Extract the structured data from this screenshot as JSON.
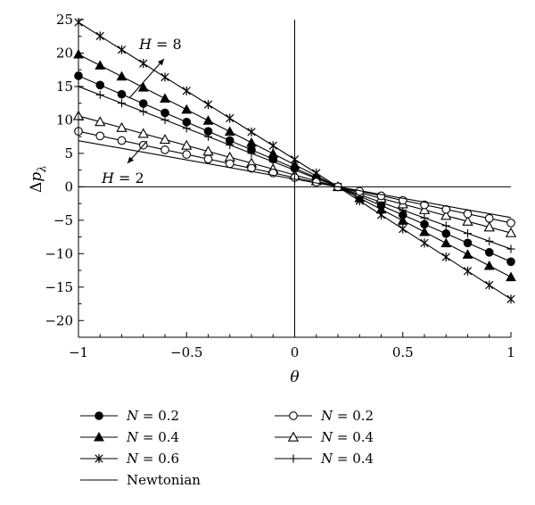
{
  "chart_data": {
    "type": "line",
    "xlabel": "θ",
    "ylabel": "Δp",
    "ylabel_sub": "λ",
    "xlim": [
      -1,
      1
    ],
    "ylim": [
      -22.5,
      25
    ],
    "x_ticks": [
      -1,
      -0.5,
      0,
      0.5,
      1
    ],
    "x_tick_labels": [
      "−1",
      "−0.5",
      "0",
      "0.5",
      "1"
    ],
    "y_ticks": [
      25,
      20,
      15,
      10,
      5,
      0,
      -5,
      -10,
      -15,
      -20
    ],
    "y_tick_labels": [
      "25",
      "20",
      "15",
      "10",
      "5",
      "0",
      "−5",
      "−10",
      "−15",
      "−20"
    ],
    "grid": false,
    "reference_lines": {
      "x": 0,
      "y": 0
    },
    "annotations": [
      {
        "text": "H = 8",
        "var": "H",
        "rest": " = 8"
      },
      {
        "text": "H = 2",
        "var": "H",
        "rest": " = 2"
      }
    ],
    "series": [
      {
        "name": "N = 0.6",
        "marker": "star",
        "group": "H = 8",
        "points": [
          [
            -1,
            24.6
          ],
          [
            0.2,
            0.0
          ],
          [
            1,
            -16.8
          ]
        ]
      },
      {
        "name": "N = 0.4",
        "marker": "triangle-filled",
        "group": "H = 8",
        "points": [
          [
            -1,
            19.8
          ],
          [
            0.2,
            0.0
          ],
          [
            1,
            -13.5
          ]
        ]
      },
      {
        "name": "N = 0.2",
        "marker": "circle-filled",
        "group": "H = 8",
        "points": [
          [
            -1,
            16.6
          ],
          [
            0.2,
            0.0
          ],
          [
            1,
            -11.2
          ]
        ]
      },
      {
        "name": "N = 0.4",
        "marker": "plus",
        "group": "H = 2",
        "points": [
          [
            -1,
            15.0
          ],
          [
            0.2,
            0.0
          ],
          [
            1,
            -9.3
          ]
        ]
      },
      {
        "name": "N = 0.4",
        "marker": "triangle-open",
        "group": "H = 2",
        "points": [
          [
            -1,
            10.6
          ],
          [
            0.2,
            0.0
          ],
          [
            1,
            -6.9
          ]
        ]
      },
      {
        "name": "N = 0.2",
        "marker": "circle-open",
        "group": "H = 2",
        "points": [
          [
            -1,
            8.3
          ],
          [
            0.2,
            0.0
          ],
          [
            1,
            -5.4
          ]
        ]
      },
      {
        "name": "Newtonian",
        "marker": "none",
        "group": "",
        "points": [
          [
            -1,
            6.9
          ],
          [
            0.2,
            0.0
          ],
          [
            1,
            -4.6
          ]
        ]
      }
    ],
    "legend": {
      "placement": "bottom",
      "entries": [
        {
          "label": "N = 0.2",
          "var": "N",
          "rest": " = 0.2",
          "marker": "circle-filled"
        },
        {
          "label": "N = 0.2",
          "var": "N",
          "rest": " = 0.2",
          "marker": "circle-open"
        },
        {
          "label": "N = 0.4",
          "var": "N",
          "rest": " = 0.4",
          "marker": "triangle-filled"
        },
        {
          "label": "N = 0.4",
          "var": "N",
          "rest": " = 0.4",
          "marker": "triangle-open"
        },
        {
          "label": "N = 0.6",
          "var": "N",
          "rest": " = 0.6",
          "marker": "star"
        },
        {
          "label": "N = 0.4",
          "var": "N",
          "rest": " = 0.4",
          "marker": "plus"
        },
        {
          "label": "Newtonian",
          "var": "",
          "rest": "Newtonian",
          "marker": "none"
        }
      ]
    }
  }
}
